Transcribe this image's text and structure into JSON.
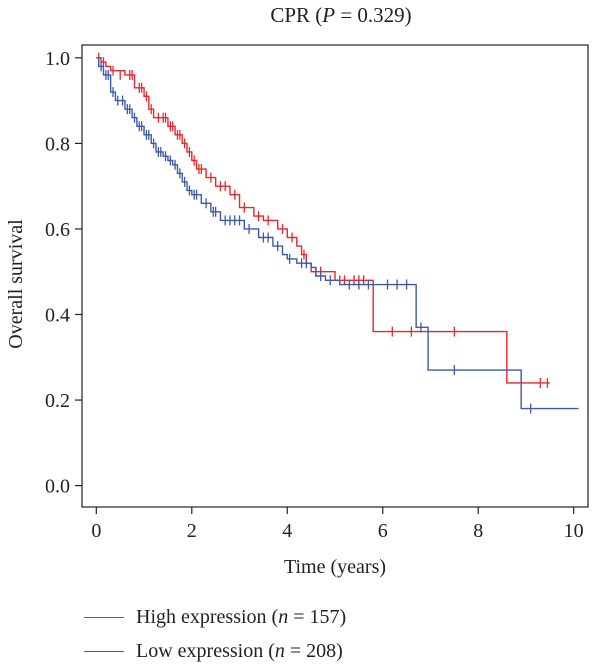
{
  "chart_data": {
    "type": "line",
    "title_prefix": "CPR (",
    "title_italic": "P",
    "title_suffix": " = 0.329)",
    "xlabel": "Time (years)",
    "ylabel": "Overall survival",
    "xlim": [
      -0.3,
      10.3
    ],
    "ylim": [
      -0.05,
      1.03
    ],
    "xticks": [
      "0",
      "2",
      "4",
      "6",
      "8",
      "10"
    ],
    "yticks": [
      "0.0",
      "0.2",
      "0.4",
      "0.6",
      "0.8",
      "1.0"
    ],
    "grid": false,
    "legend_position": "bottom-left",
    "series": [
      {
        "name_prefix": "High expression (",
        "name_italic": "n",
        "name_suffix": " = 157)",
        "color": "#e8262b",
        "steps": [
          [
            0,
            1.0
          ],
          [
            0.1,
            0.99
          ],
          [
            0.2,
            0.98
          ],
          [
            0.3,
            0.97
          ],
          [
            0.6,
            0.96
          ],
          [
            0.8,
            0.93
          ],
          [
            1.0,
            0.91
          ],
          [
            1.1,
            0.88
          ],
          [
            1.2,
            0.86
          ],
          [
            1.5,
            0.84
          ],
          [
            1.65,
            0.82
          ],
          [
            1.8,
            0.8
          ],
          [
            1.9,
            0.78
          ],
          [
            2.0,
            0.76
          ],
          [
            2.1,
            0.74
          ],
          [
            2.3,
            0.72
          ],
          [
            2.5,
            0.7
          ],
          [
            2.8,
            0.68
          ],
          [
            3.0,
            0.65
          ],
          [
            3.3,
            0.63
          ],
          [
            3.5,
            0.62
          ],
          [
            3.8,
            0.6
          ],
          [
            4.0,
            0.58
          ],
          [
            4.2,
            0.56
          ],
          [
            4.3,
            0.54
          ],
          [
            4.4,
            0.52
          ],
          [
            4.5,
            0.5
          ],
          [
            5.0,
            0.48
          ],
          [
            5.8,
            0.36
          ],
          [
            8.6,
            0.24
          ],
          [
            9.5,
            0.24
          ]
        ],
        "censor": [
          [
            0.05,
            1.0
          ],
          [
            0.15,
            0.99
          ],
          [
            0.35,
            0.97
          ],
          [
            0.5,
            0.96
          ],
          [
            0.7,
            0.96
          ],
          [
            0.75,
            0.96
          ],
          [
            0.9,
            0.93
          ],
          [
            0.95,
            0.93
          ],
          [
            1.05,
            0.91
          ],
          [
            1.15,
            0.88
          ],
          [
            1.3,
            0.86
          ],
          [
            1.4,
            0.86
          ],
          [
            1.45,
            0.86
          ],
          [
            1.55,
            0.84
          ],
          [
            1.6,
            0.84
          ],
          [
            1.7,
            0.82
          ],
          [
            1.75,
            0.82
          ],
          [
            1.85,
            0.8
          ],
          [
            1.95,
            0.78
          ],
          [
            2.05,
            0.76
          ],
          [
            2.15,
            0.74
          ],
          [
            2.2,
            0.74
          ],
          [
            2.4,
            0.72
          ],
          [
            2.6,
            0.7
          ],
          [
            2.7,
            0.7
          ],
          [
            2.9,
            0.68
          ],
          [
            3.1,
            0.65
          ],
          [
            3.4,
            0.63
          ],
          [
            3.6,
            0.62
          ],
          [
            3.9,
            0.6
          ],
          [
            4.1,
            0.58
          ],
          [
            4.35,
            0.54
          ],
          [
            4.6,
            0.5
          ],
          [
            4.7,
            0.5
          ],
          [
            5.1,
            0.48
          ],
          [
            5.2,
            0.48
          ],
          [
            5.4,
            0.48
          ],
          [
            5.5,
            0.48
          ],
          [
            5.6,
            0.48
          ],
          [
            6.2,
            0.36
          ],
          [
            6.6,
            0.36
          ],
          [
            7.5,
            0.36
          ],
          [
            9.3,
            0.24
          ],
          [
            9.45,
            0.24
          ]
        ]
      },
      {
        "name_prefix": "Low expression (",
        "name_italic": "n",
        "name_suffix": " = 208)",
        "color": "#3c5aa8",
        "steps": [
          [
            0,
            1.0
          ],
          [
            0.05,
            0.98
          ],
          [
            0.15,
            0.96
          ],
          [
            0.3,
            0.92
          ],
          [
            0.4,
            0.9
          ],
          [
            0.6,
            0.88
          ],
          [
            0.75,
            0.86
          ],
          [
            0.85,
            0.84
          ],
          [
            1.0,
            0.82
          ],
          [
            1.15,
            0.8
          ],
          [
            1.25,
            0.78
          ],
          [
            1.4,
            0.77
          ],
          [
            1.5,
            0.76
          ],
          [
            1.6,
            0.75
          ],
          [
            1.7,
            0.73
          ],
          [
            1.8,
            0.71
          ],
          [
            1.9,
            0.69
          ],
          [
            2.0,
            0.68
          ],
          [
            2.2,
            0.66
          ],
          [
            2.4,
            0.64
          ],
          [
            2.6,
            0.62
          ],
          [
            3.1,
            0.6
          ],
          [
            3.4,
            0.58
          ],
          [
            3.7,
            0.56
          ],
          [
            3.9,
            0.54
          ],
          [
            4.0,
            0.53
          ],
          [
            4.2,
            0.52
          ],
          [
            4.5,
            0.51
          ],
          [
            4.6,
            0.49
          ],
          [
            4.8,
            0.48
          ],
          [
            5.1,
            0.47
          ],
          [
            6.7,
            0.37
          ],
          [
            6.95,
            0.27
          ],
          [
            8.9,
            0.18
          ],
          [
            10.1,
            0.18
          ]
        ],
        "censor": [
          [
            0.1,
            0.98
          ],
          [
            0.2,
            0.96
          ],
          [
            0.25,
            0.96
          ],
          [
            0.35,
            0.92
          ],
          [
            0.45,
            0.9
          ],
          [
            0.55,
            0.9
          ],
          [
            0.65,
            0.88
          ],
          [
            0.7,
            0.88
          ],
          [
            0.8,
            0.86
          ],
          [
            0.9,
            0.84
          ],
          [
            0.95,
            0.84
          ],
          [
            1.05,
            0.82
          ],
          [
            1.1,
            0.82
          ],
          [
            1.2,
            0.8
          ],
          [
            1.3,
            0.78
          ],
          [
            1.35,
            0.78
          ],
          [
            1.45,
            0.77
          ],
          [
            1.55,
            0.76
          ],
          [
            1.65,
            0.75
          ],
          [
            1.75,
            0.73
          ],
          [
            1.85,
            0.71
          ],
          [
            1.95,
            0.69
          ],
          [
            2.05,
            0.68
          ],
          [
            2.1,
            0.68
          ],
          [
            2.3,
            0.66
          ],
          [
            2.45,
            0.64
          ],
          [
            2.5,
            0.64
          ],
          [
            2.7,
            0.62
          ],
          [
            2.8,
            0.62
          ],
          [
            2.9,
            0.62
          ],
          [
            3.0,
            0.62
          ],
          [
            3.2,
            0.6
          ],
          [
            3.5,
            0.58
          ],
          [
            3.6,
            0.58
          ],
          [
            3.8,
            0.56
          ],
          [
            4.05,
            0.53
          ],
          [
            4.3,
            0.52
          ],
          [
            4.4,
            0.52
          ],
          [
            4.7,
            0.49
          ],
          [
            4.9,
            0.48
          ],
          [
            5.3,
            0.47
          ],
          [
            5.5,
            0.47
          ],
          [
            5.7,
            0.47
          ],
          [
            6.1,
            0.47
          ],
          [
            6.3,
            0.47
          ],
          [
            6.5,
            0.47
          ],
          [
            6.8,
            0.37
          ],
          [
            7.5,
            0.27
          ],
          [
            9.1,
            0.18
          ]
        ]
      }
    ]
  }
}
